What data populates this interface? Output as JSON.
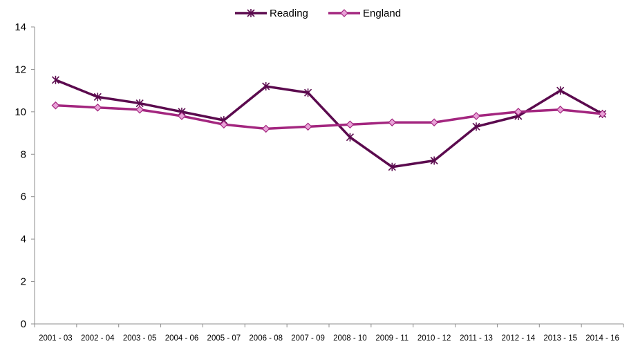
{
  "chart_data": {
    "type": "line",
    "title": "",
    "xlabel": "",
    "ylabel": "",
    "categories": [
      "2001 - 03",
      "2002 - 04",
      "2003 - 05",
      "2004 - 06",
      "2005 - 07",
      "2006 - 08",
      "2007 - 09",
      "2008 - 10",
      "2009 - 11",
      "2010 - 12",
      "2011 - 13",
      "2012 - 14",
      "2013 - 15",
      "2014 - 16"
    ],
    "ylim": [
      0,
      14
    ],
    "yticks": [
      0,
      2,
      4,
      6,
      8,
      10,
      12,
      14
    ],
    "grid": false,
    "legend_position": "top-center",
    "series": [
      {
        "name": "Reading",
        "marker": "asterisk",
        "color": "#5b0a4e",
        "values": [
          11.5,
          10.7,
          10.4,
          10.0,
          9.6,
          11.2,
          10.9,
          8.8,
          7.4,
          7.7,
          9.3,
          9.8,
          11.0,
          9.9
        ]
      },
      {
        "name": "England",
        "marker": "diamond",
        "color": "#a3267f",
        "values": [
          10.3,
          10.2,
          10.1,
          9.8,
          9.4,
          9.2,
          9.3,
          9.4,
          9.5,
          9.5,
          9.8,
          10.0,
          10.1,
          9.9
        ]
      }
    ]
  }
}
